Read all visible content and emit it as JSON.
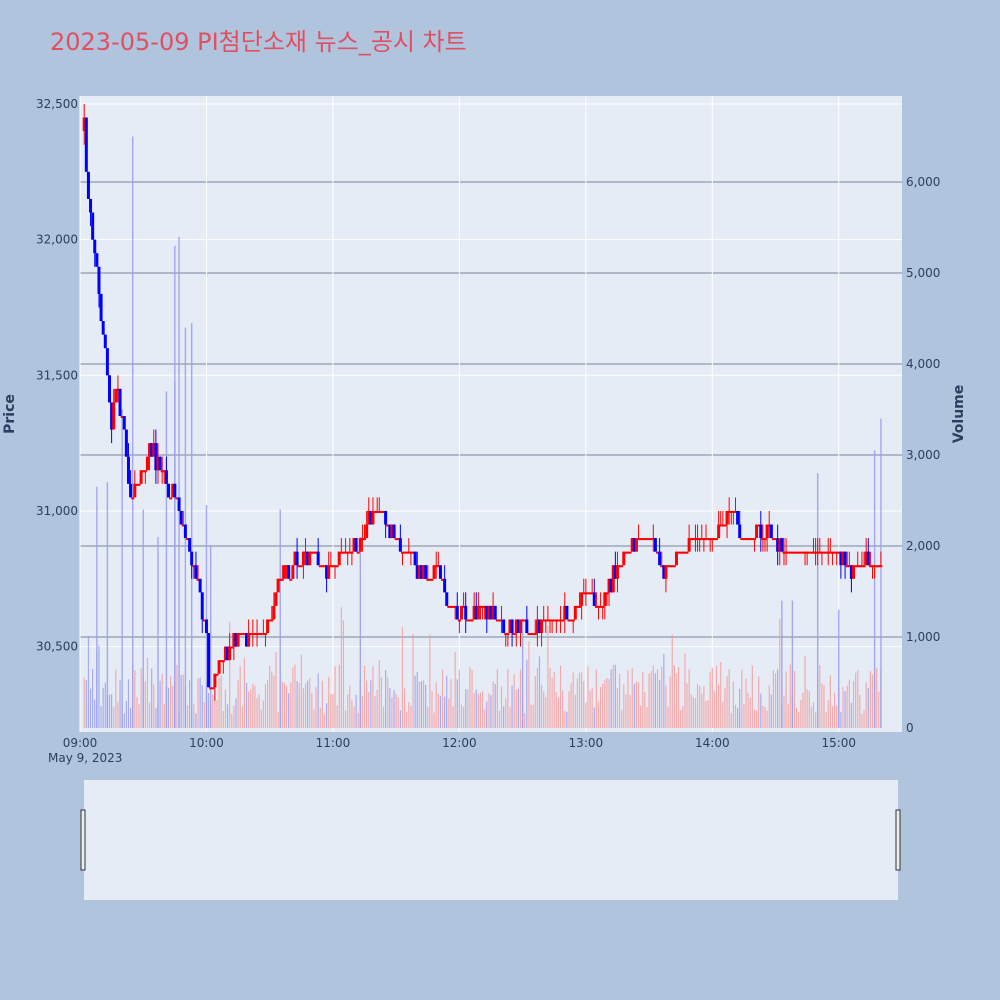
{
  "title": "2023-05-09 PI첨단소재 뉴스_공시 차트",
  "colors": {
    "up": "#ff0000",
    "down": "#0000ff",
    "title": "#e05060",
    "background": "#b0c4de",
    "plot": "#e5ecf6"
  },
  "chart_data": {
    "type": "candlestick",
    "title": "2023-05-09 PI첨단소재 뉴스_공시 차트",
    "date_label": "May 9, 2023",
    "x_range": [
      "09:00",
      "15:30"
    ],
    "x_ticks": [
      "09:00",
      "10:00",
      "11:00",
      "12:00",
      "13:00",
      "14:00",
      "15:00"
    ],
    "y_label": "Price",
    "y_range": [
      30200,
      32500
    ],
    "y_ticks": [
      "32,500",
      "32,000",
      "31,500",
      "31,000",
      "30,500"
    ],
    "y2_label": "Volume",
    "y2_range": [
      0,
      6900
    ],
    "y2_ticks": [
      "6,000",
      "5,000",
      "4,000",
      "3,000",
      "2,000",
      "1,000",
      "0"
    ],
    "grid": true,
    "rangeslider": true,
    "price_path": [
      [
        "09:02",
        32400
      ],
      [
        "09:03",
        32250
      ],
      [
        "09:05",
        32050
      ],
      [
        "09:08",
        31850
      ],
      [
        "09:10",
        31700
      ],
      [
        "09:13",
        31500
      ],
      [
        "09:15",
        31300
      ],
      [
        "09:17",
        31450
      ],
      [
        "09:20",
        31350
      ],
      [
        "09:23",
        31100
      ],
      [
        "09:28",
        31100
      ],
      [
        "09:33",
        31250
      ],
      [
        "09:38",
        31150
      ],
      [
        "09:45",
        31050
      ],
      [
        "09:50",
        30900
      ],
      [
        "09:55",
        30750
      ],
      [
        "10:00",
        30550
      ],
      [
        "10:01",
        30300
      ],
      [
        "10:05",
        30400
      ],
      [
        "10:10",
        30500
      ],
      [
        "10:15",
        30550
      ],
      [
        "10:20",
        30550
      ],
      [
        "10:25",
        30550
      ],
      [
        "10:30",
        30600
      ],
      [
        "10:35",
        30750
      ],
      [
        "10:40",
        30800
      ],
      [
        "10:45",
        30800
      ],
      [
        "10:50",
        30850
      ],
      [
        "10:55",
        30800
      ],
      [
        "11:00",
        30800
      ],
      [
        "11:05",
        30850
      ],
      [
        "11:10",
        30850
      ],
      [
        "11:15",
        30950
      ],
      [
        "11:20",
        31000
      ],
      [
        "11:25",
        30950
      ],
      [
        "11:30",
        30900
      ],
      [
        "11:35",
        30850
      ],
      [
        "11:40",
        30800
      ],
      [
        "11:45",
        30750
      ],
      [
        "11:50",
        30800
      ],
      [
        "11:55",
        30650
      ],
      [
        "12:00",
        30650
      ],
      [
        "12:05",
        30600
      ],
      [
        "12:10",
        30650
      ],
      [
        "12:15",
        30600
      ],
      [
        "12:20",
        30600
      ],
      [
        "12:25",
        30550
      ],
      [
        "12:30",
        30600
      ],
      [
        "12:35",
        30550
      ],
      [
        "12:40",
        30600
      ],
      [
        "12:45",
        30600
      ],
      [
        "12:50",
        30600
      ],
      [
        "12:55",
        30650
      ],
      [
        "13:00",
        30750
      ],
      [
        "13:05",
        30650
      ],
      [
        "13:10",
        30700
      ],
      [
        "13:15",
        30800
      ],
      [
        "13:20",
        30850
      ],
      [
        "13:25",
        30900
      ],
      [
        "13:30",
        30900
      ],
      [
        "13:35",
        30800
      ],
      [
        "13:40",
        30800
      ],
      [
        "13:45",
        30850
      ],
      [
        "13:50",
        30900
      ],
      [
        "13:55",
        30900
      ],
      [
        "14:00",
        30900
      ],
      [
        "14:05",
        30950
      ],
      [
        "14:10",
        31000
      ],
      [
        "14:15",
        30900
      ],
      [
        "14:20",
        30900
      ],
      [
        "14:25",
        30950
      ],
      [
        "14:30",
        30900
      ],
      [
        "14:35",
        30850
      ],
      [
        "14:40",
        30850
      ],
      [
        "14:45",
        30850
      ],
      [
        "14:50",
        30850
      ],
      [
        "14:55",
        30850
      ],
      [
        "15:00",
        30850
      ],
      [
        "15:05",
        30800
      ],
      [
        "15:10",
        30800
      ],
      [
        "15:15",
        30800
      ],
      [
        "15:20",
        30800
      ]
    ],
    "volume_spikes": [
      [
        "09:25",
        6500
      ],
      [
        "09:45",
        5300
      ],
      [
        "09:47",
        5400
      ],
      [
        "09:50",
        4400
      ],
      [
        "09:53",
        4450
      ],
      [
        "09:20",
        3500
      ],
      [
        "09:41",
        3700
      ],
      [
        "09:45",
        3800
      ],
      [
        "09:08",
        2650
      ],
      [
        "09:13",
        2700
      ],
      [
        "09:37",
        2100
      ],
      [
        "09:30",
        2400
      ],
      [
        "10:00",
        2450
      ],
      [
        "10:02",
        2000
      ],
      [
        "10:35",
        2400
      ],
      [
        "11:13",
        2100
      ],
      [
        "12:30",
        1200
      ],
      [
        "14:33",
        1400
      ],
      [
        "14:38",
        1400
      ],
      [
        "14:50",
        2800
      ],
      [
        "15:00",
        1300
      ],
      [
        "15:17",
        3050
      ],
      [
        "15:20",
        3400
      ]
    ]
  }
}
